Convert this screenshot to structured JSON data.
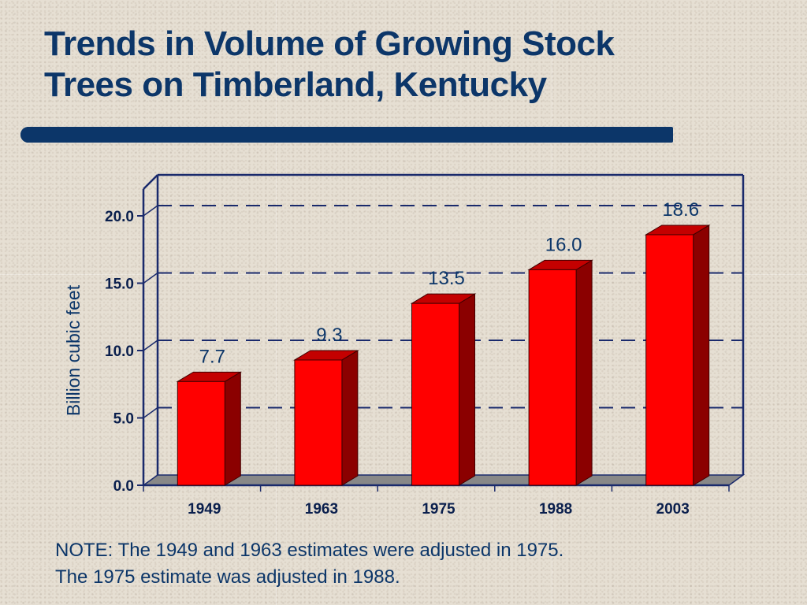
{
  "title_lines": [
    "Trends in Volume of Growing Stock",
    "Trees on Timberland, Kentucky"
  ],
  "notes": [
    "NOTE: The 1949 and 1963 estimates were adjusted in 1975.",
    "The 1975 estimate was adjusted in 1988."
  ],
  "colors": {
    "title": "#0c3669",
    "bar_front": "#ff0000",
    "bar_side": "#8b0000",
    "bar_top": "#c40000",
    "axis": "#1a2a6c",
    "floor": "#888888"
  },
  "chart_data": {
    "type": "bar",
    "style": "3d",
    "title": "",
    "xlabel": "",
    "ylabel": "Billion cubic feet",
    "categories": [
      "1949",
      "1963",
      "1975",
      "1988",
      "2003"
    ],
    "values": [
      7.7,
      9.3,
      13.5,
      16.0,
      18.6
    ],
    "data_labels": [
      "7.7",
      "9.3",
      "13.5",
      "16.0",
      "18.6"
    ],
    "ylim": [
      0,
      20
    ],
    "yticks": [
      "0.0",
      "5.0",
      "10.0",
      "15.0",
      "20.0"
    ],
    "grid": "dashed horizontal",
    "legend": "none"
  }
}
